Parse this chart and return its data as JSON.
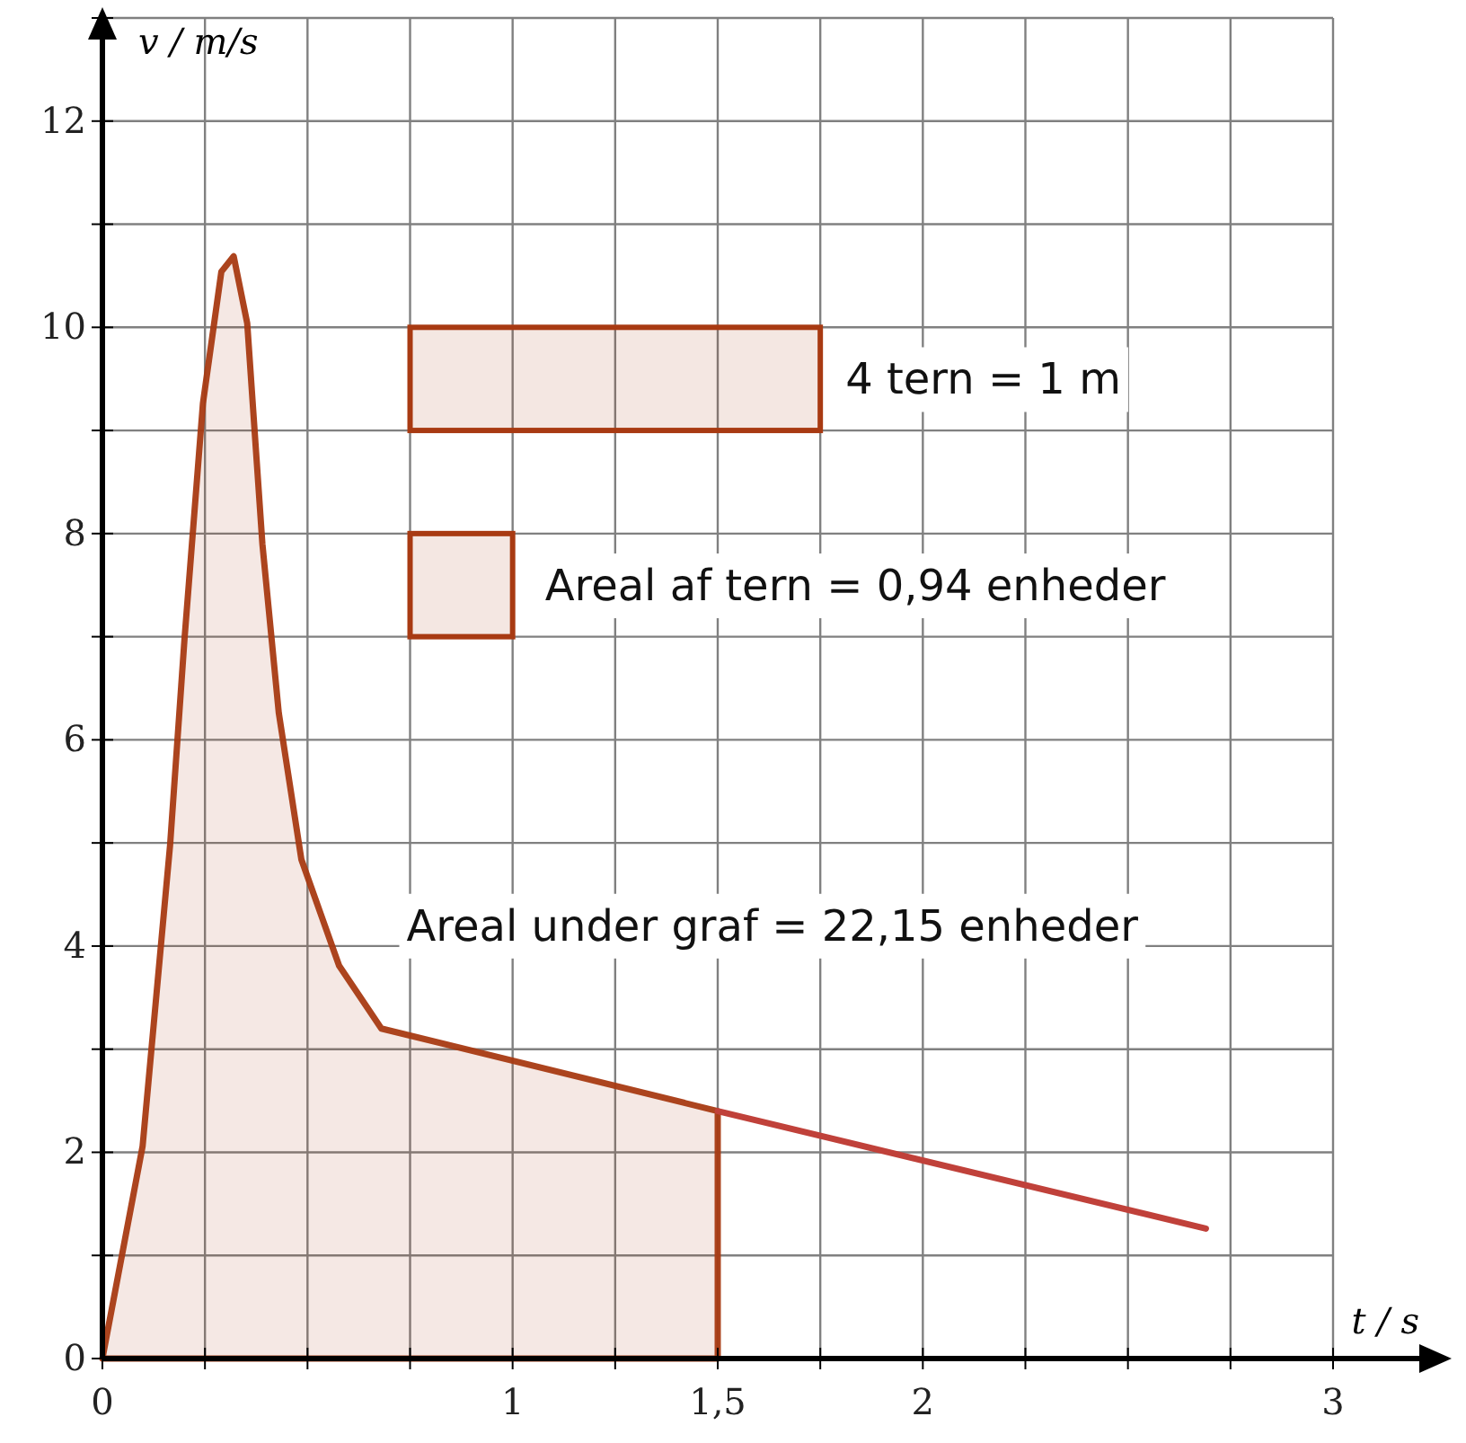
{
  "chart_data": {
    "type": "area",
    "xlabel": "t / s",
    "ylabel": "v / m/s",
    "xlim": [
      0,
      3
    ],
    "ylim": [
      0,
      13
    ],
    "xticks": [
      0,
      {
        "value": 0.25,
        "label": null
      },
      {
        "value": 0.5,
        "label": null
      },
      {
        "value": 0.75,
        "label": null
      },
      1,
      {
        "value": 1.25,
        "label": null
      },
      {
        "value": 1.5,
        "label": "1,5"
      },
      {
        "value": 1.75,
        "label": null
      },
      2,
      {
        "value": 2.25,
        "label": null
      },
      {
        "value": 2.5,
        "label": null
      },
      {
        "value": 2.75,
        "label": null
      },
      3
    ],
    "yticks": [
      0,
      {
        "value": 1,
        "label": null
      },
      2,
      {
        "value": 3,
        "label": null
      },
      4,
      {
        "value": 5,
        "label": null
      },
      6,
      {
        "value": 7,
        "label": null
      },
      8,
      {
        "value": 9,
        "label": null
      },
      10,
      {
        "value": 11,
        "label": null
      },
      12,
      {
        "value": 13,
        "label": null
      }
    ],
    "grid": true,
    "series": [
      {
        "color": "#a83a12",
        "x": [
          0,
          0.098,
          0.165,
          0.2,
          0.245,
          0.29,
          0.32,
          0.353,
          0.39,
          0.43,
          0.485,
          0.577,
          0.68,
          1.5
        ],
        "values": [
          0,
          2.06,
          4.98,
          6.97,
          9.26,
          10.54,
          10.69,
          10.04,
          7.9,
          6.26,
          4.84,
          3.81,
          3.2,
          2.4
        ]
      },
      {
        "type": "line",
        "color": "#c0413a",
        "x": [
          1.5,
          2.69
        ],
        "values": [
          2.4,
          1.26
        ]
      }
    ],
    "annotations": [
      "4 tern = 1 m",
      "Areal af tern = 0,94 enheder",
      "Areal under graf = 22,15 enheder"
    ]
  }
}
